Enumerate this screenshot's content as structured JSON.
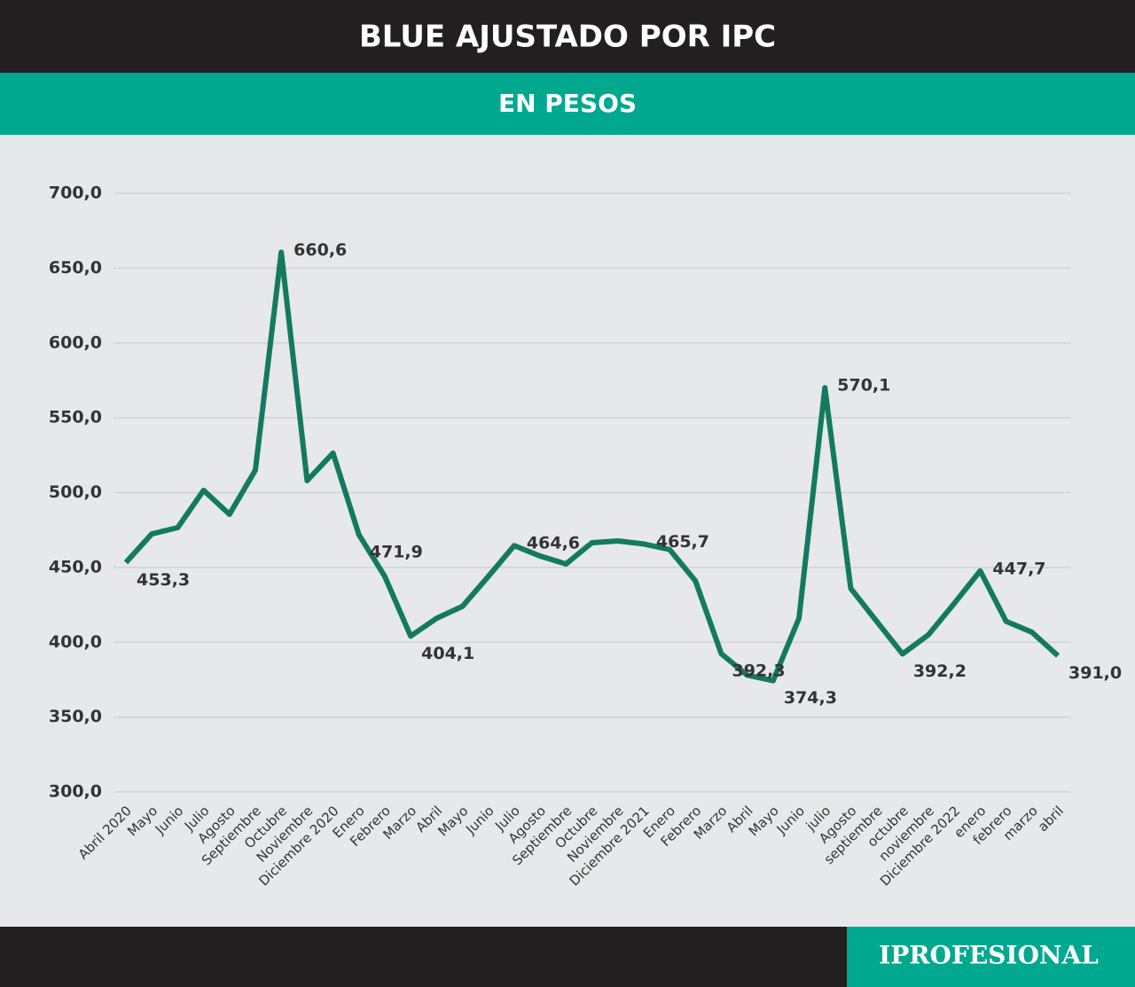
{
  "chart_data": {
    "type": "line",
    "title": "BLUE AJUSTADO POR IPC",
    "subtitle": "EN PESOS",
    "categories": [
      "Abril 2020",
      "Mayo",
      "Junio",
      "Julio",
      "Agosto",
      "Septiembre",
      "Octubre",
      "Noviembre",
      "Diciembre 2020",
      "Enero",
      "Febrero",
      "Marzo",
      "Abril",
      "Mayo",
      "Junio",
      "Julio",
      "Agosto",
      "Septiembre",
      "Octubre",
      "Noviembre",
      "Diciembre 2021",
      "Enero",
      "Febrero",
      "Marzo",
      "Abril",
      "Mayo",
      "Junio",
      "julio",
      "Agosto",
      "septiembre",
      "octubre",
      "noviembre",
      "Diciembre 2022",
      "enero",
      "febrero",
      "marzo",
      "abril"
    ],
    "series": [
      {
        "color": "#137a5e",
        "values": [
          453.3,
          472.4,
          476.6,
          501.5,
          485.5,
          515,
          660.6,
          508,
          526.4,
          471.9,
          444,
          404.1,
          416,
          424,
          444,
          464.6,
          457.6,
          452.3,
          466.5,
          467.7,
          465.7,
          462,
          441,
          392.3,
          378,
          374.3,
          416,
          570.1,
          436,
          414,
          392.2,
          405,
          426,
          447.7,
          414,
          406.7,
          391.0
        ],
        "value_labels": [
          "453,3",
          null,
          null,
          null,
          null,
          null,
          "660,6",
          null,
          null,
          "471,9",
          null,
          "404,1",
          null,
          null,
          null,
          "464,6",
          null,
          null,
          null,
          null,
          "465,7",
          null,
          null,
          "392,3",
          null,
          "374,3",
          null,
          "570,1",
          null,
          null,
          "392,2",
          null,
          null,
          "447,7",
          null,
          null,
          "391,0"
        ]
      }
    ],
    "ylim": [
      300,
      700
    ],
    "yticks": [
      {
        "value": 300,
        "label": "300,0"
      },
      {
        "value": 350,
        "label": "350,0"
      },
      {
        "value": 400,
        "label": "400,0"
      },
      {
        "value": 450,
        "label": "450,0"
      },
      {
        "value": 500,
        "label": "500,0"
      },
      {
        "value": 550,
        "label": "550,0"
      },
      {
        "value": 600,
        "label": "600,0"
      },
      {
        "value": 650,
        "label": "650,0"
      },
      {
        "value": 700,
        "label": "700,0"
      }
    ],
    "grid": true
  },
  "footer": {
    "brand": "IPROFESIONAL"
  }
}
